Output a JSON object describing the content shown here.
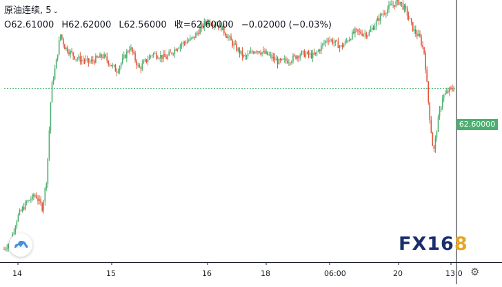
{
  "header": {
    "title": "原油连续, 5",
    "open": "O62.61000",
    "high": "H62.62000",
    "low": "L62.56000",
    "close": "收=62.60000",
    "change": "−0.02000 (−0.03%)"
  },
  "price_label": "62.60000",
  "logo": {
    "part1": "FX16",
    "part2": "8"
  },
  "colors": {
    "up": "#4caf6e",
    "down": "#e2553a",
    "price_line": "#4caf6e",
    "axis": "#131722"
  },
  "icons": {
    "settings": "gear-icon",
    "logo": "tradingview-cloud-icon"
  },
  "chart_data": {
    "type": "candlestick",
    "title": "原油连续, 5",
    "interval": "5",
    "last_price": 62.6,
    "x_tick_labels": [
      "14",
      "15",
      "16",
      "18",
      "06:00",
      "20",
      "13:0"
    ],
    "y_visible_range": [
      61.0,
      63.4
    ],
    "price_path": [
      [
        0.0,
        61.12
      ],
      [
        0.015,
        61.2
      ],
      [
        0.03,
        61.42
      ],
      [
        0.05,
        61.55
      ],
      [
        0.07,
        61.62
      ],
      [
        0.085,
        61.5
      ],
      [
        0.095,
        61.78
      ],
      [
        0.105,
        62.6
      ],
      [
        0.115,
        62.82
      ],
      [
        0.125,
        63.1
      ],
      [
        0.135,
        62.98
      ],
      [
        0.16,
        62.88
      ],
      [
        0.19,
        62.84
      ],
      [
        0.22,
        62.9
      ],
      [
        0.25,
        62.76
      ],
      [
        0.28,
        62.98
      ],
      [
        0.3,
        62.78
      ],
      [
        0.33,
        62.92
      ],
      [
        0.36,
        62.88
      ],
      [
        0.39,
        63.0
      ],
      [
        0.42,
        63.06
      ],
      [
        0.45,
        63.22
      ],
      [
        0.48,
        63.18
      ],
      [
        0.51,
        63.0
      ],
      [
        0.535,
        62.88
      ],
      [
        0.56,
        62.96
      ],
      [
        0.59,
        62.9
      ],
      [
        0.61,
        62.84
      ],
      [
        0.635,
        62.86
      ],
      [
        0.66,
        62.92
      ],
      [
        0.69,
        62.9
      ],
      [
        0.72,
        63.06
      ],
      [
        0.75,
        62.98
      ],
      [
        0.78,
        63.12
      ],
      [
        0.81,
        63.1
      ],
      [
        0.84,
        63.28
      ],
      [
        0.86,
        63.36
      ],
      [
        0.88,
        63.4
      ],
      [
        0.895,
        63.3
      ],
      [
        0.91,
        63.14
      ],
      [
        0.925,
        63.06
      ],
      [
        0.935,
        62.92
      ],
      [
        0.945,
        62.4
      ],
      [
        0.955,
        62.0
      ],
      [
        0.965,
        62.3
      ],
      [
        0.975,
        62.52
      ],
      [
        0.99,
        62.58
      ],
      [
        1.0,
        62.6
      ]
    ]
  }
}
